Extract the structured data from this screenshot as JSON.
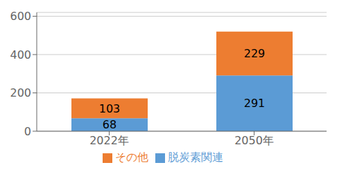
{
  "chart_data": {
    "type": "bar",
    "stacked": true,
    "categories": [
      "2022年",
      "2050年"
    ],
    "series": [
      {
        "name": "脱炭素関連",
        "color": "#5B9BD5",
        "values": [
          68,
          291
        ]
      },
      {
        "name": "その他",
        "color": "#ED7D31",
        "values": [
          103,
          229
        ]
      }
    ],
    "ylim": [
      0,
      620
    ],
    "yticks": [
      0,
      200,
      400,
      600
    ],
    "grid": true,
    "data_labels": true,
    "legend": "bottom"
  }
}
